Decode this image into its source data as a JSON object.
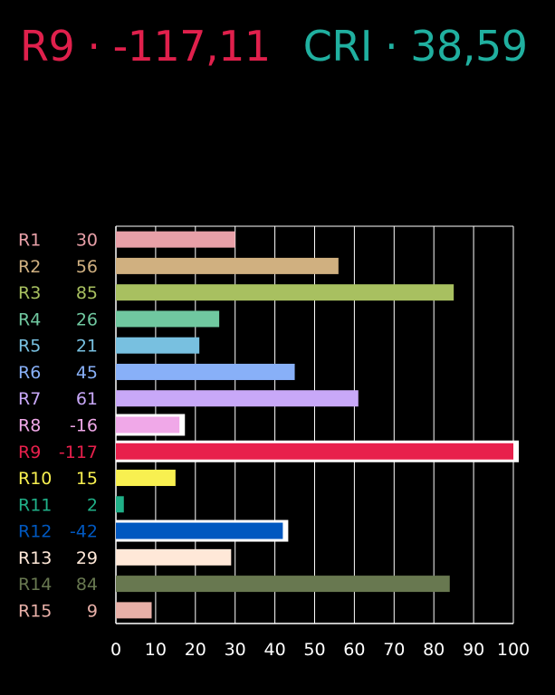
{
  "header": {
    "r9_text": "R9 · -117,11",
    "cri_text": "CRI · 38,59",
    "r9_color": "#e0204c",
    "cri_color": "#20b0a0"
  },
  "chart_data": {
    "type": "bar",
    "orientation": "horizontal",
    "title": "R9 · -117,11  CRI · 38,59",
    "xlabel": "",
    "ylabel": "",
    "xlim": [
      0,
      100
    ],
    "xticks": [
      "0",
      "10",
      "20",
      "30",
      "40",
      "50",
      "60",
      "70",
      "80",
      "90",
      "100"
    ],
    "grid": true,
    "negative_values_shown_as_absolute_with_white_outline": true,
    "categories": [
      "R1",
      "R2",
      "R3",
      "R4",
      "R5",
      "R6",
      "R7",
      "R8",
      "R9",
      "R10",
      "R11",
      "R12",
      "R13",
      "R14",
      "R15"
    ],
    "value_labels": [
      "30",
      "56",
      "85",
      "26",
      "21",
      "45",
      "61",
      "-16",
      "-117",
      "15",
      "2",
      "-42",
      "29",
      "84",
      "9"
    ],
    "values": [
      30,
      56,
      85,
      26,
      21,
      45,
      61,
      -16,
      -117,
      15,
      2,
      -42,
      29,
      84,
      9
    ],
    "colors": [
      "#e8a0a8",
      "#d0b080",
      "#a8c060",
      "#70c8a0",
      "#78c0e0",
      "#88b0f8",
      "#c8a8f8",
      "#f0a8e8",
      "#e8204c",
      "#f8f050",
      "#20b088",
      "#0058c0",
      "#ffe8d8",
      "#687850",
      "#e8b0a8"
    ]
  }
}
